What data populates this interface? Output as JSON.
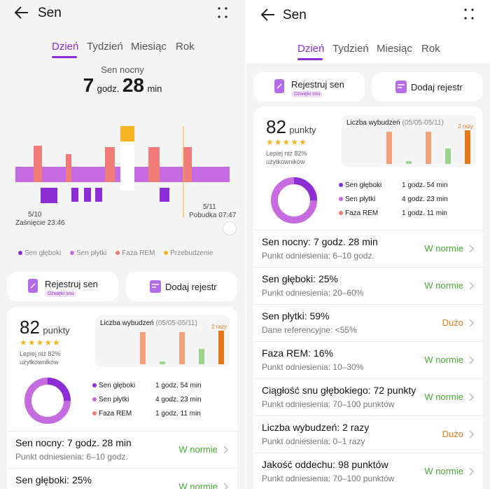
{
  "header": {
    "title": "Sen"
  },
  "tabs": [
    "Dzień",
    "Tydzień",
    "Miesiąc",
    "Rok"
  ],
  "summary": {
    "label": "Sen nocny",
    "hours": "7",
    "hours_unit": "godz.",
    "minutes": "28",
    "minutes_unit": "min"
  },
  "timeline": {
    "start_date": "5/10",
    "start_label": "Zaśnięcie 23:46",
    "end_date": "5/11",
    "end_label": "Pobudka 07:47"
  },
  "legend": [
    "Sen głęboki",
    "Sen płytki",
    "Faza REM",
    "Przebudzenie"
  ],
  "colors": {
    "accent": "#8c2dd6",
    "deep": "#8c2dd6",
    "light": "#c66be0",
    "rem": "#f07b78",
    "awake": "#f5b524",
    "ok": "#4aa833",
    "warn": "#e07a1a"
  },
  "actions": {
    "register": "Rejestruj sen",
    "register_sub": "Dźwięki snu",
    "add": "Dodaj rejestr"
  },
  "score": {
    "value": "82",
    "unit": "punkty",
    "stars_label": "★★★★★",
    "rating": 4.5,
    "compare": "Lepiej niż 82% użytkowników"
  },
  "wakeups": {
    "title": "Liczba wybudzeń",
    "range": "(05/05-05/11)",
    "value_label": "2 razy"
  },
  "breakdown": [
    {
      "name": "Sen głęboki",
      "value": "1 godz. 54 min",
      "color": "#8c2dd6",
      "fraction": 0.25
    },
    {
      "name": "Sen płytki",
      "value": "4 godz. 23 min",
      "color": "#c66be0",
      "fraction": 0.59
    },
    {
      "name": "Faza REM",
      "value": "1 godz. 11 min",
      "color": "#f07b78",
      "fraction": 0.16
    }
  ],
  "rows": [
    {
      "title": "Sen nocny: 7 godz. 28 min",
      "sub": "Punkt odniesienia: 6–10 godz.",
      "status": "W normie"
    },
    {
      "title": "Sen głęboki: 25%",
      "sub": "Punkt odniesienia: 20–60%",
      "status": "W normie"
    },
    {
      "title": "Sen płytki: 59%",
      "sub": "Dane referencyjne: <55%",
      "status": "Dużo"
    },
    {
      "title": "Faza REM: 16%",
      "sub": "Punkt odniesienia: 10–30%",
      "status": "W normie"
    },
    {
      "title": "Ciągłość snu głębokiego: 72 punkty",
      "sub": "Punkt odniesienia: 70–100 punktów",
      "status": "W normie"
    },
    {
      "title": "Liczba wybudzeń: 2 razy",
      "sub": "Punkt odniesienia: 0–1 razy",
      "status": "Dużo"
    },
    {
      "title": "Jakość oddechu: 98 punktów",
      "sub": "Punkt odniesienia: 70–100 punktów",
      "status": "W normie"
    }
  ]
}
